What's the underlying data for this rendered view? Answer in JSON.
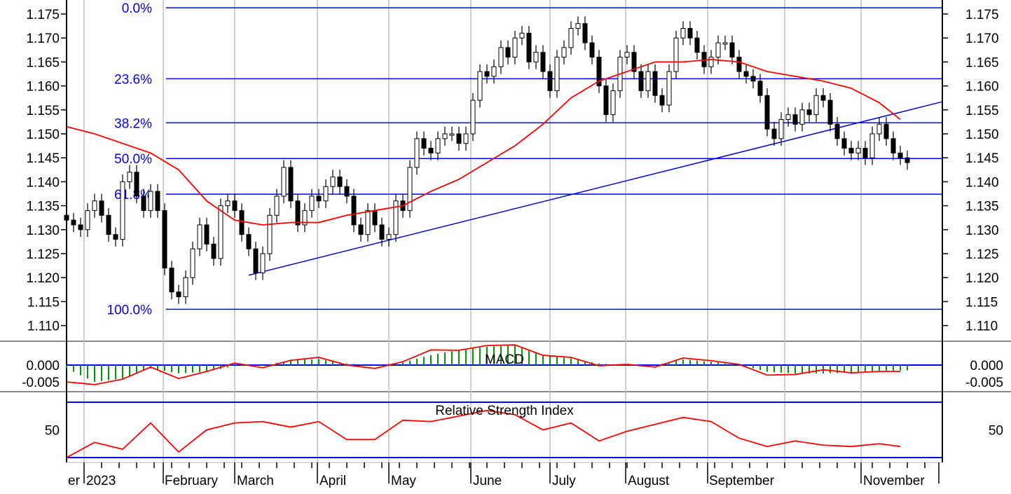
{
  "chart_data": [
    {
      "type": "candlestick",
      "panel": "price",
      "y_ticks": [
        "1.175",
        "1.170",
        "1.165",
        "1.160",
        "1.155",
        "1.150",
        "1.145",
        "1.140",
        "1.135",
        "1.130",
        "1.125",
        "1.120",
        "1.115",
        "1.110"
      ],
      "ylim": [
        1.107,
        1.178
      ],
      "closes": [
        1.132,
        1.131,
        1.13,
        1.134,
        1.136,
        1.133,
        1.129,
        1.128,
        1.14,
        1.142,
        1.137,
        1.134,
        1.138,
        1.134,
        1.122,
        1.117,
        1.116,
        1.12,
        1.126,
        1.131,
        1.127,
        1.124,
        1.135,
        1.136,
        1.134,
        1.129,
        1.126,
        1.121,
        1.125,
        1.133,
        1.137,
        1.143,
        1.136,
        1.131,
        1.134,
        1.137,
        1.136,
        1.139,
        1.141,
        1.139,
        1.137,
        1.131,
        1.129,
        1.134,
        1.131,
        1.128,
        1.129,
        1.136,
        1.134,
        1.143,
        1.149,
        1.147,
        1.146,
        1.149,
        1.15,
        1.15,
        1.148,
        1.15,
        1.157,
        1.163,
        1.162,
        1.164,
        1.168,
        1.166,
        1.17,
        1.171,
        1.165,
        1.167,
        1.163,
        1.159,
        1.166,
        1.168,
        1.172,
        1.173,
        1.169,
        1.166,
        1.16,
        1.154,
        1.159,
        1.166,
        1.167,
        1.163,
        1.159,
        1.163,
        1.158,
        1.156,
        1.163,
        1.17,
        1.172,
        1.17,
        1.167,
        1.164,
        1.166,
        1.169,
        1.169,
        1.166,
        1.163,
        1.162,
        1.161,
        1.158,
        1.151,
        1.149,
        1.153,
        1.154,
        1.152,
        1.155,
        1.154,
        1.158,
        1.157,
        1.152,
        1.149,
        1.147,
        1.146,
        1.147,
        1.145,
        1.15,
        1.152,
        1.149,
        1.146,
        1.145,
        1.144
      ],
      "moving_average": [
        1.1515,
        1.15,
        1.148,
        1.146,
        1.1425,
        1.136,
        1.132,
        1.131,
        1.1315,
        1.1315,
        1.133,
        1.134,
        1.135,
        1.138,
        1.1405,
        1.144,
        1.1475,
        1.152,
        1.1575,
        1.161,
        1.163,
        1.165,
        1.165,
        1.1655,
        1.165,
        1.163,
        1.162,
        1.161,
        1.1595,
        1.1565,
        1.153
      ],
      "fibonacci": {
        "high": 1.1763,
        "low": 1.1134,
        "levels": [
          {
            "label": "0.0%",
            "value": 1.1763
          },
          {
            "label": "23.6%",
            "value": 1.1615
          },
          {
            "label": "38.2%",
            "value": 1.1523
          },
          {
            "label": "50.0%",
            "value": 1.14485
          },
          {
            "label": "61.8%",
            "value": 1.1374
          },
          {
            "label": "100.0%",
            "value": 1.1134
          }
        ]
      },
      "trendline": {
        "from": 1.1205,
        "to": 1.1567
      },
      "colors": {
        "moving_average": "#ff0000",
        "fibonacci": "#0000ff",
        "trendline": "#0000ff",
        "grid": "#c0c0c0"
      }
    },
    {
      "type": "bar+line",
      "panel": "macd",
      "title": "MACD",
      "y_ticks": [
        "0.000",
        "-0.005"
      ],
      "macd_line": [
        -0.005,
        -0.0058,
        -0.0042,
        -0.0006,
        -0.004,
        -0.0019,
        0.0006,
        -0.0008,
        0.0014,
        0.0023,
        0.0,
        -0.001,
        0.001,
        0.0045,
        0.0044,
        0.0058,
        0.006,
        0.0029,
        0.0023,
        -0.0002,
        0.0002,
        -0.0006,
        0.0021,
        0.0013,
        0.0002,
        -0.003,
        -0.0028,
        -0.0014,
        -0.0023,
        -0.0019,
        -0.0019
      ],
      "histogram": [
        -0.001,
        -0.005,
        -0.004,
        -0.001,
        -0.0025,
        -0.002,
        -0.0003,
        -0.0001,
        0.0015,
        0.0018,
        0.0005,
        -0.0001,
        0.0008,
        0.003,
        0.0045,
        0.0055,
        0.0058,
        0.003,
        0.002,
        0.0005,
        0.0,
        0.0,
        0.0017,
        0.001,
        0.0001,
        -0.002,
        -0.0025,
        -0.0025,
        -0.0022,
        -0.0017,
        -0.0016
      ],
      "colors": {
        "macd_line": "#ff0000",
        "histogram": "#009900",
        "zero_line": "#0000ff"
      }
    },
    {
      "type": "line",
      "panel": "rsi",
      "title": "Relative Strength Index",
      "y_ticks": [
        "50"
      ],
      "bands": [
        30,
        70
      ],
      "values": [
        30,
        41,
        36,
        55,
        34,
        50,
        55,
        56,
        52,
        56,
        43,
        43,
        57,
        56,
        60,
        64,
        61,
        50,
        55,
        42,
        49,
        54,
        59,
        56,
        44,
        38,
        42,
        39,
        38,
        40,
        38
      ],
      "colors": {
        "line": "#ff0000",
        "bands": "#0000ff"
      }
    }
  ],
  "x_axis": {
    "labels": [
      "er",
      "2023",
      "February",
      "March",
      "April",
      "May",
      "June",
      "July",
      "August",
      "September",
      "November"
    ]
  }
}
